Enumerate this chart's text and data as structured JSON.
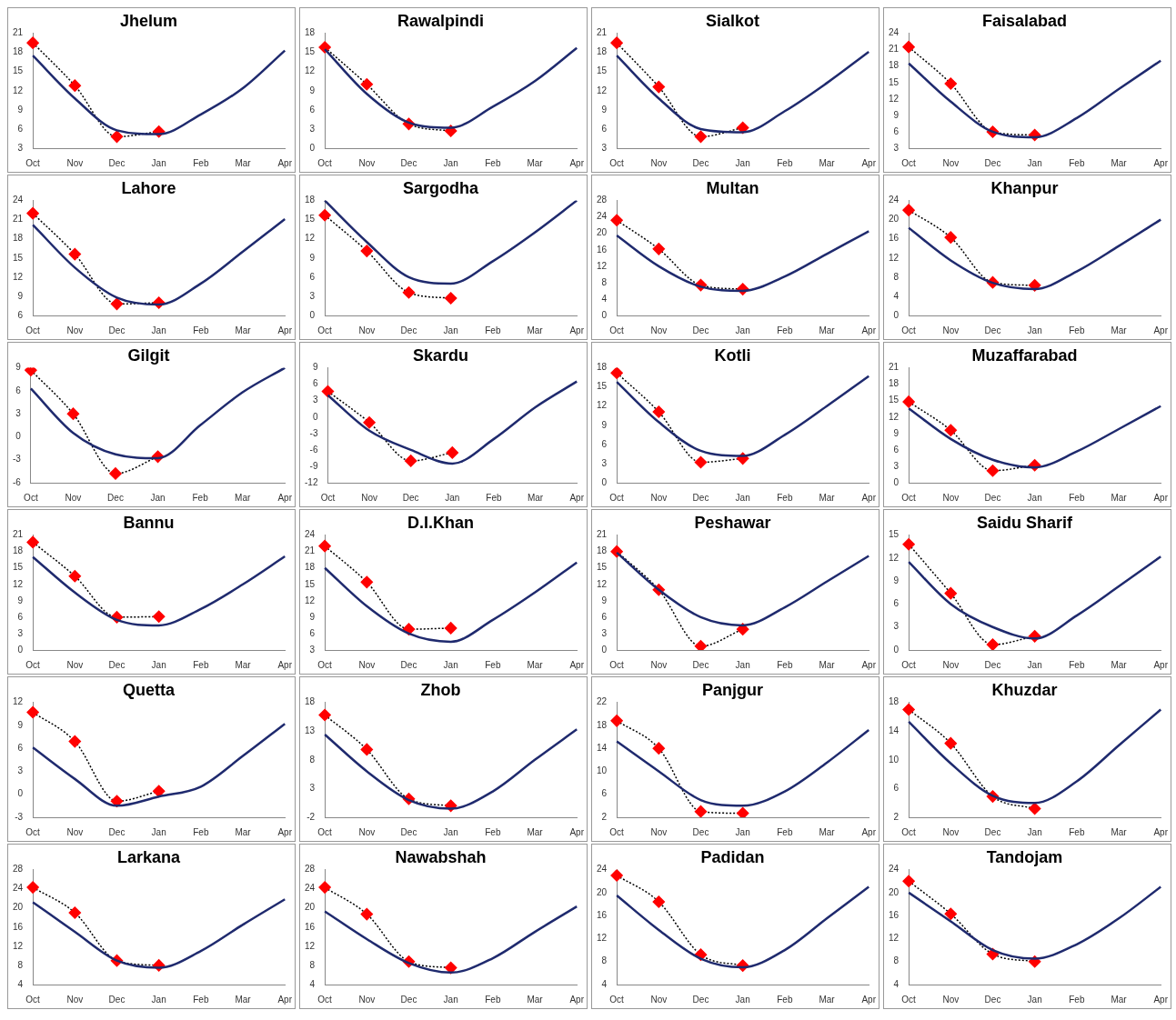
{
  "chart_data": [
    {
      "type": "line",
      "title": "Jhelum",
      "categories": [
        "Oct",
        "Nov",
        "Dec",
        "Jan",
        "Feb",
        "Mar",
        "Apr"
      ],
      "ylim": [
        3,
        21
      ],
      "yticks": [
        3,
        6,
        9,
        12,
        15,
        18,
        21
      ],
      "grid": false,
      "legend": false,
      "series": [
        {
          "color": "#1f2a6e",
          "marker": "none",
          "line_style": "solid",
          "values": [
            17.5,
            10.8,
            5.8,
            5.2,
            8.3,
            12.4,
            18.3
          ]
        },
        {
          "color": "#ff0000",
          "marker": "diamond",
          "line_style": "dotted",
          "values": [
            19.5,
            12.8,
            4.8,
            5.6,
            null,
            null,
            null
          ]
        }
      ]
    },
    {
      "type": "line",
      "title": "Rawalpindi",
      "categories": [
        "Oct",
        "Nov",
        "Dec",
        "Jan",
        "Feb",
        "Mar",
        "Apr"
      ],
      "ylim": [
        0,
        18
      ],
      "yticks": [
        0,
        3,
        6,
        9,
        12,
        15,
        18
      ],
      "grid": false,
      "legend": false,
      "series": [
        {
          "color": "#1f2a6e",
          "marker": "none",
          "line_style": "solid",
          "values": [
            15.5,
            8.5,
            4,
            3.2,
            6.5,
            10.5,
            15.7
          ]
        },
        {
          "color": "#ff0000",
          "marker": "diamond",
          "line_style": "dotted",
          "values": [
            15.8,
            10,
            3.8,
            2.7,
            null,
            null,
            null
          ]
        }
      ]
    },
    {
      "type": "line",
      "title": "Sialkot",
      "categories": [
        "Oct",
        "Nov",
        "Dec",
        "Jan",
        "Feb",
        "Mar",
        "Apr"
      ],
      "ylim": [
        3,
        21
      ],
      "yticks": [
        3,
        6,
        9,
        12,
        15,
        18,
        21
      ],
      "grid": false,
      "legend": false,
      "series": [
        {
          "color": "#1f2a6e",
          "marker": "none",
          "line_style": "solid",
          "values": [
            17.5,
            10.8,
            6,
            5.5,
            8.8,
            13.2,
            18.1
          ]
        },
        {
          "color": "#ff0000",
          "marker": "diamond",
          "line_style": "dotted",
          "values": [
            19.5,
            12.6,
            4.8,
            6.2,
            null,
            null,
            null
          ]
        }
      ]
    },
    {
      "type": "line",
      "title": "Faisalabad",
      "categories": [
        "Oct",
        "Nov",
        "Dec",
        "Jan",
        "Feb",
        "Mar",
        "Apr"
      ],
      "ylim": [
        3,
        24
      ],
      "yticks": [
        3,
        6,
        9,
        12,
        15,
        18,
        21,
        24
      ],
      "grid": false,
      "legend": false,
      "series": [
        {
          "color": "#1f2a6e",
          "marker": "none",
          "line_style": "solid",
          "values": [
            18.5,
            11.5,
            6,
            5,
            8.5,
            13.8,
            19
          ]
        },
        {
          "color": "#ff0000",
          "marker": "diamond",
          "line_style": "dotted",
          "values": [
            21.5,
            14.8,
            6,
            5.4,
            null,
            null,
            null
          ]
        }
      ]
    },
    {
      "type": "line",
      "title": "Lahore",
      "categories": [
        "Oct",
        "Nov",
        "Dec",
        "Jan",
        "Feb",
        "Mar",
        "Apr"
      ],
      "ylim": [
        6,
        24
      ],
      "yticks": [
        6,
        9,
        12,
        15,
        18,
        21,
        24
      ],
      "grid": false,
      "legend": false,
      "series": [
        {
          "color": "#1f2a6e",
          "marker": "none",
          "line_style": "solid",
          "values": [
            20.2,
            13.5,
            8.8,
            7.7,
            11,
            16,
            21.1
          ]
        },
        {
          "color": "#ff0000",
          "marker": "diamond",
          "line_style": "dotted",
          "values": [
            22,
            15.6,
            7.8,
            8,
            null,
            null,
            null
          ]
        }
      ]
    },
    {
      "type": "line",
      "title": "Sargodha",
      "categories": [
        "Oct",
        "Nov",
        "Dec",
        "Jan",
        "Feb",
        "Mar",
        "Apr"
      ],
      "ylim": [
        0,
        18
      ],
      "yticks": [
        0,
        3,
        6,
        9,
        12,
        15,
        18
      ],
      "grid": false,
      "legend": false,
      "series": [
        {
          "color": "#1f2a6e",
          "marker": "none",
          "line_style": "solid",
          "values": [
            18,
            11.5,
            6,
            5,
            8.5,
            13,
            18
          ]
        },
        {
          "color": "#ff0000",
          "marker": "diamond",
          "line_style": "dotted",
          "values": [
            15.7,
            10.1,
            3.6,
            2.7,
            null,
            null,
            null
          ]
        }
      ]
    },
    {
      "type": "line",
      "title": "Multan",
      "categories": [
        "Oct",
        "Nov",
        "Dec",
        "Jan",
        "Feb",
        "Mar",
        "Apr"
      ],
      "ylim": [
        0,
        28
      ],
      "yticks": [
        0,
        4,
        8,
        12,
        16,
        20,
        24,
        28
      ],
      "grid": false,
      "legend": false,
      "series": [
        {
          "color": "#1f2a6e",
          "marker": "none",
          "line_style": "solid",
          "values": [
            19.5,
            12,
            7,
            6,
            9.5,
            15,
            20.5
          ]
        },
        {
          "color": "#ff0000",
          "marker": "diamond",
          "line_style": "dotted",
          "values": [
            23.2,
            16.2,
            7.4,
            6.4,
            null,
            null,
            null
          ]
        }
      ]
    },
    {
      "type": "line",
      "title": "Khanpur",
      "categories": [
        "Oct",
        "Nov",
        "Dec",
        "Jan",
        "Feb",
        "Mar",
        "Apr"
      ],
      "ylim": [
        0,
        24
      ],
      "yticks": [
        0,
        4,
        8,
        12,
        16,
        20,
        24
      ],
      "grid": false,
      "legend": false,
      "series": [
        {
          "color": "#1f2a6e",
          "marker": "none",
          "line_style": "solid",
          "values": [
            18.3,
            11.5,
            6.8,
            5.5,
            9.2,
            14.5,
            20
          ]
        },
        {
          "color": "#ff0000",
          "marker": "diamond",
          "line_style": "dotted",
          "values": [
            22,
            16.3,
            6.9,
            6.3,
            null,
            null,
            null
          ]
        }
      ]
    },
    {
      "type": "line",
      "title": "Gilgit",
      "categories": [
        "Oct",
        "Nov",
        "Dec",
        "Jan",
        "Feb",
        "Mar",
        "Apr"
      ],
      "ylim": [
        -6,
        9
      ],
      "yticks": [
        -6,
        -3,
        0,
        3,
        6,
        9
      ],
      "grid": false,
      "legend": false,
      "series": [
        {
          "color": "#1f2a6e",
          "marker": "none",
          "line_style": "solid",
          "values": [
            6.3,
            0.5,
            -2.3,
            -2.8,
            1.5,
            5.8,
            9
          ]
        },
        {
          "color": "#ff0000",
          "marker": "diamond",
          "line_style": "dotted",
          "values": [
            8.7,
            3,
            -4.8,
            -2.6,
            null,
            null,
            null
          ]
        }
      ]
    },
    {
      "type": "line",
      "title": "Skardu",
      "categories": [
        "Oct",
        "Nov",
        "Dec",
        "Jan",
        "Feb",
        "Mar",
        "Apr"
      ],
      "ylim": [
        -12,
        9
      ],
      "yticks": [
        -12,
        -9,
        -6,
        -3,
        0,
        3,
        6,
        9
      ],
      "grid": false,
      "legend": false,
      "series": [
        {
          "color": "#1f2a6e",
          "marker": "none",
          "line_style": "solid",
          "values": [
            4,
            -2.5,
            -6,
            -8.5,
            -4,
            1.8,
            6.5
          ]
        },
        {
          "color": "#ff0000",
          "marker": "diamond",
          "line_style": "dotted",
          "values": [
            4.7,
            -1,
            -8,
            -6.5,
            null,
            null,
            null
          ]
        }
      ]
    },
    {
      "type": "line",
      "title": "Kotli",
      "categories": [
        "Oct",
        "Nov",
        "Dec",
        "Jan",
        "Feb",
        "Mar",
        "Apr"
      ],
      "ylim": [
        0,
        18
      ],
      "yticks": [
        0,
        3,
        6,
        9,
        12,
        15,
        18
      ],
      "grid": false,
      "legend": false,
      "series": [
        {
          "color": "#1f2a6e",
          "marker": "none",
          "line_style": "solid",
          "values": [
            15.8,
            9.5,
            5,
            4.2,
            7.5,
            12,
            16.7
          ]
        },
        {
          "color": "#ff0000",
          "marker": "diamond",
          "line_style": "dotted",
          "values": [
            17.2,
            11.1,
            3.2,
            3.8,
            null,
            null,
            null
          ]
        }
      ]
    },
    {
      "type": "line",
      "title": "Muzaffarabad",
      "categories": [
        "Oct",
        "Nov",
        "Dec",
        "Jan",
        "Feb",
        "Mar",
        "Apr"
      ],
      "ylim": [
        0,
        21
      ],
      "yticks": [
        0,
        3,
        6,
        9,
        12,
        15,
        18,
        21
      ],
      "grid": false,
      "legend": false,
      "series": [
        {
          "color": "#1f2a6e",
          "marker": "none",
          "line_style": "solid",
          "values": [
            13.6,
            8,
            4.2,
            2.8,
            5.7,
            9.8,
            14
          ]
        },
        {
          "color": "#ff0000",
          "marker": "diamond",
          "line_style": "dotted",
          "values": [
            14.8,
            9.6,
            2.2,
            3.2,
            null,
            null,
            null
          ]
        }
      ]
    },
    {
      "type": "line",
      "title": "Bannu",
      "categories": [
        "Oct",
        "Nov",
        "Dec",
        "Jan",
        "Feb",
        "Mar",
        "Apr"
      ],
      "ylim": [
        0,
        21
      ],
      "yticks": [
        0,
        3,
        6,
        9,
        12,
        15,
        18,
        21
      ],
      "grid": false,
      "legend": false,
      "series": [
        {
          "color": "#1f2a6e",
          "marker": "none",
          "line_style": "solid",
          "values": [
            17,
            10.5,
            5.5,
            4.5,
            7.5,
            12,
            17.1
          ]
        },
        {
          "color": "#ff0000",
          "marker": "diamond",
          "line_style": "dotted",
          "values": [
            19.7,
            13.5,
            6,
            6.1,
            null,
            null,
            null
          ]
        }
      ]
    },
    {
      "type": "line",
      "title": "D.I.Khan",
      "categories": [
        "Oct",
        "Nov",
        "Dec",
        "Jan",
        "Feb",
        "Mar",
        "Apr"
      ],
      "ylim": [
        3,
        24
      ],
      "yticks": [
        3,
        6,
        9,
        12,
        15,
        18,
        21,
        24
      ],
      "grid": false,
      "legend": false,
      "series": [
        {
          "color": "#1f2a6e",
          "marker": "none",
          "line_style": "solid",
          "values": [
            18,
            11,
            6,
            4.5,
            8.5,
            13.5,
            19
          ]
        },
        {
          "color": "#ff0000",
          "marker": "diamond",
          "line_style": "dotted",
          "values": [
            22,
            15.4,
            6.8,
            7,
            null,
            null,
            null
          ]
        }
      ]
    },
    {
      "type": "line",
      "title": "Peshawar",
      "categories": [
        "Oct",
        "Nov",
        "Dec",
        "Jan",
        "Feb",
        "Mar",
        "Apr"
      ],
      "ylim": [
        0,
        21
      ],
      "yticks": [
        0,
        3,
        6,
        9,
        12,
        15,
        18,
        21
      ],
      "grid": false,
      "legend": false,
      "series": [
        {
          "color": "#1f2a6e",
          "marker": "none",
          "line_style": "solid",
          "values": [
            17.8,
            11,
            6,
            4.5,
            7.8,
            12.5,
            17.2
          ]
        },
        {
          "color": "#ff0000",
          "marker": "diamond",
          "line_style": "dotted",
          "values": [
            18,
            11,
            0.7,
            3.8,
            null,
            null,
            null
          ]
        }
      ]
    },
    {
      "type": "line",
      "title": "Saidu Sharif",
      "categories": [
        "Oct",
        "Nov",
        "Dec",
        "Jan",
        "Feb",
        "Mar",
        "Apr"
      ],
      "ylim": [
        0,
        15
      ],
      "yticks": [
        0,
        3,
        6,
        9,
        12,
        15
      ],
      "grid": false,
      "legend": false,
      "series": [
        {
          "color": "#1f2a6e",
          "marker": "none",
          "line_style": "solid",
          "values": [
            11.5,
            6,
            3,
            1.5,
            4.5,
            8.3,
            12.2
          ]
        },
        {
          "color": "#ff0000",
          "marker": "diamond",
          "line_style": "dotted",
          "values": [
            13.8,
            7.4,
            0.7,
            1.8,
            null,
            null,
            null
          ]
        }
      ]
    },
    {
      "type": "line",
      "title": "Quetta",
      "categories": [
        "Oct",
        "Nov",
        "Dec",
        "Jan",
        "Feb",
        "Mar",
        "Apr"
      ],
      "ylim": [
        -3,
        12
      ],
      "yticks": [
        -3,
        0,
        3,
        6,
        9,
        12
      ],
      "grid": false,
      "legend": false,
      "series": [
        {
          "color": "#1f2a6e",
          "marker": "none",
          "line_style": "solid",
          "values": [
            6.1,
            2,
            -1.5,
            -0.3,
            1,
            5,
            9.2
          ]
        },
        {
          "color": "#ff0000",
          "marker": "diamond",
          "line_style": "dotted",
          "values": [
            10.7,
            6.9,
            -0.9,
            0.4,
            null,
            null,
            null
          ]
        }
      ]
    },
    {
      "type": "line",
      "title": "Zhob",
      "categories": [
        "Oct",
        "Nov",
        "Dec",
        "Jan",
        "Feb",
        "Mar",
        "Apr"
      ],
      "ylim": [
        -2,
        18
      ],
      "yticks": [
        -2,
        3,
        8,
        13,
        18
      ],
      "grid": false,
      "legend": false,
      "series": [
        {
          "color": "#1f2a6e",
          "marker": "none",
          "line_style": "solid",
          "values": [
            12.4,
            6,
            1,
            -0.5,
            2.5,
            8,
            13.3
          ]
        },
        {
          "color": "#ff0000",
          "marker": "diamond",
          "line_style": "dotted",
          "values": [
            15.8,
            9.8,
            1.2,
            0,
            null,
            null,
            null
          ]
        }
      ]
    },
    {
      "type": "line",
      "title": "Panjgur",
      "categories": [
        "Oct",
        "Nov",
        "Dec",
        "Jan",
        "Feb",
        "Mar",
        "Apr"
      ],
      "ylim": [
        2,
        22
      ],
      "yticks": [
        2,
        6,
        10,
        14,
        18,
        22
      ],
      "grid": false,
      "legend": false,
      "series": [
        {
          "color": "#1f2a6e",
          "marker": "none",
          "line_style": "solid",
          "values": [
            15.2,
            10,
            5,
            4,
            6.5,
            11.5,
            17.2
          ]
        },
        {
          "color": "#ff0000",
          "marker": "diamond",
          "line_style": "dotted",
          "values": [
            18.8,
            14,
            3,
            2.7,
            null,
            null,
            null
          ]
        }
      ]
    },
    {
      "type": "line",
      "title": "Khuzdar",
      "categories": [
        "Oct",
        "Nov",
        "Dec",
        "Jan",
        "Feb",
        "Mar",
        "Apr"
      ],
      "ylim": [
        2,
        18
      ],
      "yticks": [
        2,
        6,
        10,
        14,
        18
      ],
      "grid": false,
      "legend": false,
      "series": [
        {
          "color": "#1f2a6e",
          "marker": "none",
          "line_style": "solid",
          "values": [
            15.3,
            9.5,
            5,
            4,
            7,
            12,
            17
          ]
        },
        {
          "color": "#ff0000",
          "marker": "diamond",
          "line_style": "dotted",
          "values": [
            17,
            12.3,
            4.9,
            3.2,
            null,
            null,
            null
          ]
        }
      ]
    },
    {
      "type": "line",
      "title": "Larkana",
      "categories": [
        "Oct",
        "Nov",
        "Dec",
        "Jan",
        "Feb",
        "Mar",
        "Apr"
      ],
      "ylim": [
        4,
        28
      ],
      "yticks": [
        4,
        8,
        12,
        16,
        20,
        24,
        28
      ],
      "grid": false,
      "legend": false,
      "series": [
        {
          "color": "#1f2a6e",
          "marker": "none",
          "line_style": "solid",
          "values": [
            21.2,
            15,
            9,
            7.5,
            11,
            16.5,
            21.8
          ]
        },
        {
          "color": "#ff0000",
          "marker": "diamond",
          "line_style": "dotted",
          "values": [
            24.3,
            19,
            9,
            8,
            null,
            null,
            null
          ]
        }
      ]
    },
    {
      "type": "line",
      "title": "Nawabshah",
      "categories": [
        "Oct",
        "Nov",
        "Dec",
        "Jan",
        "Feb",
        "Mar",
        "Apr"
      ],
      "ylim": [
        4,
        28
      ],
      "yticks": [
        4,
        8,
        12,
        16,
        20,
        24,
        28
      ],
      "grid": false,
      "legend": false,
      "series": [
        {
          "color": "#1f2a6e",
          "marker": "none",
          "line_style": "solid",
          "values": [
            19.3,
            13.5,
            8.5,
            6.5,
            9.5,
            15,
            20.3
          ]
        },
        {
          "color": "#ff0000",
          "marker": "diamond",
          "line_style": "dotted",
          "values": [
            24.3,
            18.7,
            8.8,
            7.5,
            null,
            null,
            null
          ]
        }
      ]
    },
    {
      "type": "line",
      "title": "Padidan",
      "categories": [
        "Oct",
        "Nov",
        "Dec",
        "Jan",
        "Feb",
        "Mar",
        "Apr"
      ],
      "ylim": [
        4,
        24
      ],
      "yticks": [
        4,
        8,
        12,
        16,
        20,
        24
      ],
      "grid": false,
      "legend": false,
      "series": [
        {
          "color": "#1f2a6e",
          "marker": "none",
          "line_style": "solid",
          "values": [
            19.5,
            13.5,
            8.5,
            7,
            10,
            15.5,
            21
          ]
        },
        {
          "color": "#ff0000",
          "marker": "diamond",
          "line_style": "dotted",
          "values": [
            23,
            18.4,
            9.2,
            7.3,
            null,
            null,
            null
          ]
        }
      ]
    },
    {
      "type": "line",
      "title": "Tandojam",
      "categories": [
        "Oct",
        "Nov",
        "Dec",
        "Jan",
        "Feb",
        "Mar",
        "Apr"
      ],
      "ylim": [
        4,
        24
      ],
      "yticks": [
        4,
        8,
        12,
        16,
        20,
        24
      ],
      "grid": false,
      "legend": false,
      "series": [
        {
          "color": "#1f2a6e",
          "marker": "none",
          "line_style": "solid",
          "values": [
            20,
            15,
            10,
            8.5,
            11,
            15.5,
            21
          ]
        },
        {
          "color": "#ff0000",
          "marker": "diamond",
          "line_style": "dotted",
          "values": [
            22,
            16.3,
            9.3,
            8,
            null,
            null,
            null
          ]
        }
      ]
    }
  ]
}
